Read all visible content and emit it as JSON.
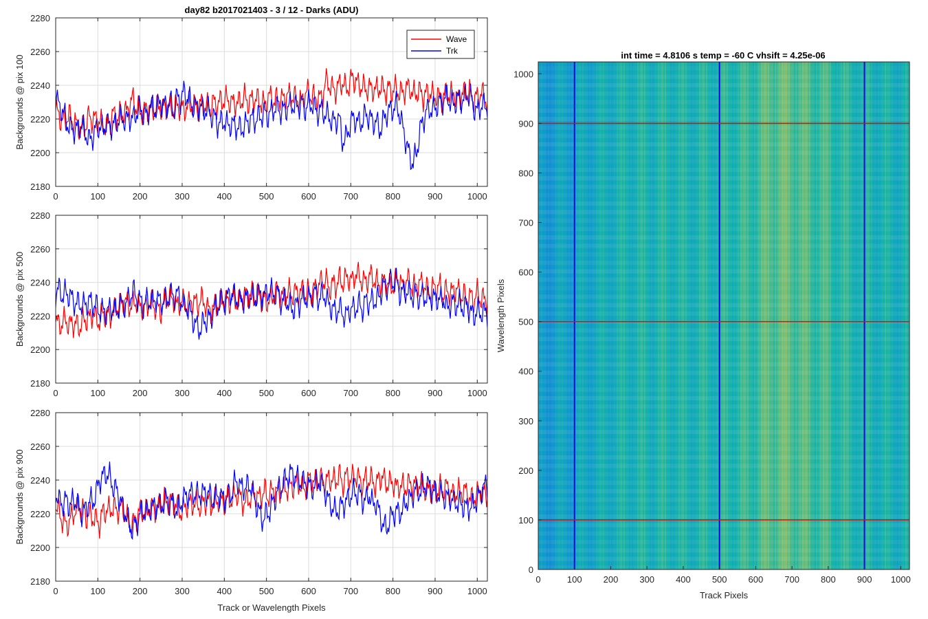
{
  "figure": {
    "suptitle": "day82 b2017021403 - 3 / 12 - Darks (ADU)",
    "heatmap_title": "int time = 4.8106 s    temp = -60 C    vhsift = 4.25e-06"
  },
  "chart_data": [
    {
      "type": "line",
      "title": "day82 b2017021403 - 3 / 12 - Darks (ADU)",
      "xlabel": "",
      "ylabel": "Backgrounds @ pix 100",
      "xlim": [
        0,
        1024
      ],
      "ylim": [
        2180,
        2280
      ],
      "xticks": [
        0,
        100,
        200,
        300,
        400,
        500,
        600,
        700,
        800,
        900,
        1000
      ],
      "yticks": [
        2180,
        2200,
        2220,
        2240,
        2260,
        2280
      ],
      "grid": true,
      "legend": "top-right",
      "x_step": 8,
      "series": [
        {
          "name": "Wave",
          "color": "#ff0000",
          "values": [
            2225,
            2222,
            2218,
            2220,
            2222,
            2219,
            2217,
            2215,
            2214,
            2217,
            2222,
            2219,
            2220,
            2218,
            2217,
            2215,
            2218,
            2223,
            2220,
            2222,
            2224,
            2224,
            2229,
            2232,
            2226,
            2225,
            2223,
            2227,
            2226,
            2225,
            2226,
            2228,
            2226,
            2228,
            2227,
            2226,
            2228,
            2227,
            2225,
            2228,
            2228,
            2228,
            2227,
            2229,
            2228,
            2227,
            2227,
            2230,
            2228,
            2231,
            2231,
            2232,
            2229,
            2230,
            2229,
            2231,
            2233,
            2230,
            2231,
            2232,
            2231,
            2230,
            2228,
            2233,
            2233,
            2230,
            2233,
            2231,
            2233,
            2234,
            2234,
            2232,
            2232,
            2230,
            2235,
            2236,
            2233,
            2233,
            2232,
            2232,
            2242,
            2241,
            2238,
            2237,
            2240,
            2242,
            2238,
            2240,
            2245,
            2242,
            2240,
            2239,
            2238,
            2238,
            2238,
            2237,
            2239,
            2238,
            2236,
            2238,
            2236,
            2239,
            2235,
            2236,
            2238,
            2239,
            2234,
            2236,
            2236,
            2233,
            2235,
            2236,
            2233,
            2234,
            2232,
            2233,
            2236,
            2233,
            2236,
            2231,
            2234,
            2235,
            2236,
            2235,
            2231,
            2233,
            2235,
            2234,
            2230
          ]
        },
        {
          "name": "Trk",
          "color": "#0000ff",
          "values": [
            2235,
            2227,
            2225,
            2220,
            2215,
            2214,
            2213,
            2216,
            2215,
            2211,
            2207,
            2210,
            2214,
            2216,
            2213,
            2218,
            2216,
            2216,
            2218,
            2220,
            2220,
            2219,
            2221,
            2220,
            2224,
            2226,
            2224,
            2221,
            2228,
            2226,
            2226,
            2230,
            2228,
            2228,
            2230,
            2224,
            2233,
            2231,
            2236,
            2233,
            2230,
            2227,
            2227,
            2227,
            2225,
            2226,
            2222,
            2221,
            2217,
            2218,
            2219,
            2216,
            2217,
            2216,
            2215,
            2214,
            2216,
            2218,
            2220,
            2219,
            2221,
            2222,
            2223,
            2222,
            2224,
            2227,
            2226,
            2224,
            2226,
            2227,
            2229,
            2227,
            2228,
            2229,
            2226,
            2229,
            2229,
            2225,
            2224,
            2226,
            2222,
            2222,
            2218,
            2219,
            2221,
            2207,
            2208,
            2215,
            2220,
            2220,
            2217,
            2219,
            2223,
            2221,
            2218,
            2219,
            2213,
            2218,
            2223,
            2225,
            2226,
            2228,
            2223,
            2214,
            2206,
            2197,
            2194,
            2200,
            2213,
            2219,
            2225,
            2226,
            2225,
            2228,
            2230,
            2231,
            2234,
            2230,
            2228,
            2232,
            2231,
            2232,
            2235,
            2233,
            2227,
            2224,
            2228,
            2228
          ]
        }
      ]
    },
    {
      "type": "line",
      "title": "",
      "xlabel": "",
      "ylabel": "Backgrounds @ pix 500",
      "xlim": [
        0,
        1024
      ],
      "ylim": [
        2180,
        2280
      ],
      "xticks": [
        0,
        100,
        200,
        300,
        400,
        500,
        600,
        700,
        800,
        900,
        1000
      ],
      "yticks": [
        2180,
        2200,
        2220,
        2240,
        2260,
        2280
      ],
      "grid": true,
      "x_step": 8,
      "series": [
        {
          "name": "Wave",
          "color": "#ff0000",
          "values": [
            2218,
            2214,
            2216,
            2218,
            2214,
            2216,
            2215,
            2213,
            2217,
            2218,
            2218,
            2222,
            2218,
            2217,
            2222,
            2220,
            2220,
            2222,
            2225,
            2226,
            2228,
            2228,
            2226,
            2227,
            2229,
            2224,
            2226,
            2225,
            2229,
            2226,
            2225,
            2222,
            2228,
            2230,
            2231,
            2230,
            2225,
            2229,
            2228,
            2226,
            2228,
            2229,
            2226,
            2230,
            2229,
            2224,
            2223,
            2225,
            2227,
            2228,
            2230,
            2228,
            2229,
            2231,
            2227,
            2232,
            2232,
            2232,
            2233,
            2230,
            2233,
            2231,
            2229,
            2229,
            2230,
            2234,
            2235,
            2232,
            2231,
            2235,
            2232,
            2234,
            2234,
            2235,
            2233,
            2234,
            2233,
            2237,
            2239,
            2240,
            2242,
            2236,
            2239,
            2238,
            2242,
            2240,
            2242,
            2243,
            2240,
            2246,
            2243,
            2241,
            2240,
            2244,
            2243,
            2240,
            2239,
            2240,
            2240,
            2238,
            2238,
            2241,
            2242,
            2236,
            2242,
            2240,
            2237,
            2238,
            2239,
            2240,
            2236,
            2234,
            2237,
            2236,
            2238,
            2232,
            2236,
            2233,
            2235,
            2236,
            2232,
            2233,
            2229,
            2232,
            2229,
            2234,
            2230,
            2230
          ]
        },
        {
          "name": "Trk",
          "color": "#0000ff",
          "values": [
            2234,
            2236,
            2232,
            2234,
            2232,
            2230,
            2227,
            2228,
            2226,
            2227,
            2229,
            2227,
            2226,
            2223,
            2223,
            2222,
            2224,
            2225,
            2222,
            2227,
            2226,
            2227,
            2232,
            2235,
            2231,
            2229,
            2226,
            2229,
            2229,
            2228,
            2231,
            2228,
            2228,
            2230,
            2233,
            2231,
            2233,
            2230,
            2225,
            2226,
            2221,
            2217,
            2213,
            2212,
            2217,
            2218,
            2219,
            2224,
            2226,
            2229,
            2228,
            2231,
            2234,
            2231,
            2230,
            2228,
            2231,
            2230,
            2232,
            2230,
            2233,
            2232,
            2232,
            2235,
            2234,
            2233,
            2233,
            2228,
            2230,
            2228,
            2223,
            2226,
            2226,
            2231,
            2231,
            2230,
            2232,
            2234,
            2230,
            2233,
            2232,
            2226,
            2225,
            2222,
            2225,
            2222,
            2219,
            2224,
            2224,
            2225,
            2227,
            2224,
            2229,
            2228,
            2229,
            2230,
            2231,
            2238,
            2236,
            2240,
            2240,
            2241,
            2234,
            2234,
            2235,
            2233,
            2232,
            2233,
            2230,
            2233,
            2230,
            2232,
            2230,
            2231,
            2229,
            2231,
            2224,
            2227,
            2228,
            2226,
            2228,
            2224,
            2227,
            2222,
            2220,
            2223,
            2222,
            2222
          ]
        }
      ]
    },
    {
      "type": "line",
      "title": "",
      "xlabel": "Track or Wavelength Pixels",
      "ylabel": "Backgrounds @ pix 900",
      "xlim": [
        0,
        1024
      ],
      "ylim": [
        2180,
        2280
      ],
      "xticks": [
        0,
        100,
        200,
        300,
        400,
        500,
        600,
        700,
        800,
        900,
        1000
      ],
      "yticks": [
        2180,
        2200,
        2220,
        2240,
        2260,
        2280
      ],
      "grid": true,
      "x_step": 8,
      "series": [
        {
          "name": "Wave",
          "color": "#ff0000",
          "values": [
            2225,
            2221,
            2216,
            2213,
            2215,
            2219,
            2223,
            2223,
            2223,
            2218,
            2219,
            2218,
            2216,
            2214,
            2221,
            2222,
            2222,
            2224,
            2222,
            2223,
            2223,
            2218,
            2214,
            2214,
            2218,
            2222,
            2221,
            2220,
            2225,
            2222,
            2224,
            2225,
            2228,
            2227,
            2227,
            2227,
            2224,
            2221,
            2223,
            2226,
            2226,
            2226,
            2226,
            2224,
            2227,
            2228,
            2225,
            2227,
            2228,
            2227,
            2228,
            2230,
            2228,
            2231,
            2232,
            2228,
            2226,
            2229,
            2229,
            2232,
            2229,
            2231,
            2234,
            2230,
            2233,
            2234,
            2232,
            2235,
            2235,
            2235,
            2236,
            2237,
            2238,
            2236,
            2235,
            2240,
            2240,
            2238,
            2240,
            2240,
            2238,
            2241,
            2240,
            2239,
            2244,
            2237,
            2242,
            2241,
            2241,
            2243,
            2240,
            2237,
            2241,
            2240,
            2240,
            2236,
            2242,
            2241,
            2238,
            2238,
            2239,
            2235,
            2237,
            2236,
            2236,
            2238,
            2236,
            2237,
            2237,
            2236,
            2232,
            2236,
            2234,
            2233,
            2235,
            2234,
            2236,
            2233,
            2231,
            2233,
            2233,
            2233,
            2233,
            2228,
            2230,
            2231,
            2234,
            2232
          ]
        },
        {
          "name": "Trk",
          "color": "#0000ff",
          "values": [
            2233,
            2227,
            2226,
            2228,
            2225,
            2227,
            2228,
            2223,
            2220,
            2223,
            2228,
            2227,
            2232,
            2240,
            2242,
            2244,
            2242,
            2236,
            2234,
            2229,
            2223,
            2219,
            2211,
            2212,
            2214,
            2220,
            2222,
            2220,
            2223,
            2224,
            2225,
            2224,
            2226,
            2229,
            2226,
            2226,
            2221,
            2226,
            2229,
            2231,
            2232,
            2232,
            2231,
            2232,
            2232,
            2233,
            2230,
            2228,
            2231,
            2230,
            2228,
            2230,
            2231,
            2238,
            2239,
            2235,
            2236,
            2236,
            2237,
            2227,
            2224,
            2216,
            2219,
            2220,
            2225,
            2229,
            2234,
            2236,
            2240,
            2243,
            2244,
            2242,
            2240,
            2239,
            2238,
            2237,
            2235,
            2237,
            2240,
            2237,
            2233,
            2227,
            2224,
            2221,
            2223,
            2225,
            2227,
            2229,
            2233,
            2232,
            2232,
            2228,
            2228,
            2232,
            2225,
            2227,
            2220,
            2214,
            2211,
            2216,
            2220,
            2221,
            2221,
            2222,
            2228,
            2228,
            2232,
            2234,
            2233,
            2236,
            2237,
            2236,
            2233,
            2232,
            2232,
            2230,
            2229,
            2230,
            2227,
            2227,
            2225,
            2225,
            2223,
            2224,
            2226,
            2228,
            2232,
            2236
          ]
        }
      ]
    },
    {
      "type": "heatmap",
      "title": "int time = 4.8106 s    temp = -60 C    vhsift = 4.25e-06",
      "xlabel": "Track Pixels",
      "ylabel": "Wavelength Pixels",
      "xlim": [
        0,
        1024
      ],
      "ylim": [
        0,
        1024
      ],
      "xticks": [
        0,
        100,
        200,
        300,
        400,
        500,
        600,
        700,
        800,
        900,
        1000
      ],
      "yticks": [
        0,
        100,
        200,
        300,
        400,
        500,
        600,
        700,
        800,
        900,
        1000
      ],
      "colormap": "parula",
      "markers": {
        "vertical_lines_x": [
          100,
          500,
          900
        ],
        "vertical_color": "#0000ff",
        "horizontal_lines_y": [
          100,
          500,
          900
        ],
        "horizontal_color": "#ff0000"
      },
      "column_profile": {
        "x_step": 32,
        "values": [
          0.3,
          0.34,
          0.38,
          0.4,
          0.42,
          0.45,
          0.48,
          0.5,
          0.52,
          0.53,
          0.52,
          0.54,
          0.53,
          0.52,
          0.54,
          0.55,
          0.56,
          0.58,
          0.6,
          0.64,
          0.7,
          0.72,
          0.7,
          0.66,
          0.64,
          0.62,
          0.58,
          0.55,
          0.55,
          0.52,
          0.5,
          0.5,
          0.48
        ]
      }
    }
  ]
}
